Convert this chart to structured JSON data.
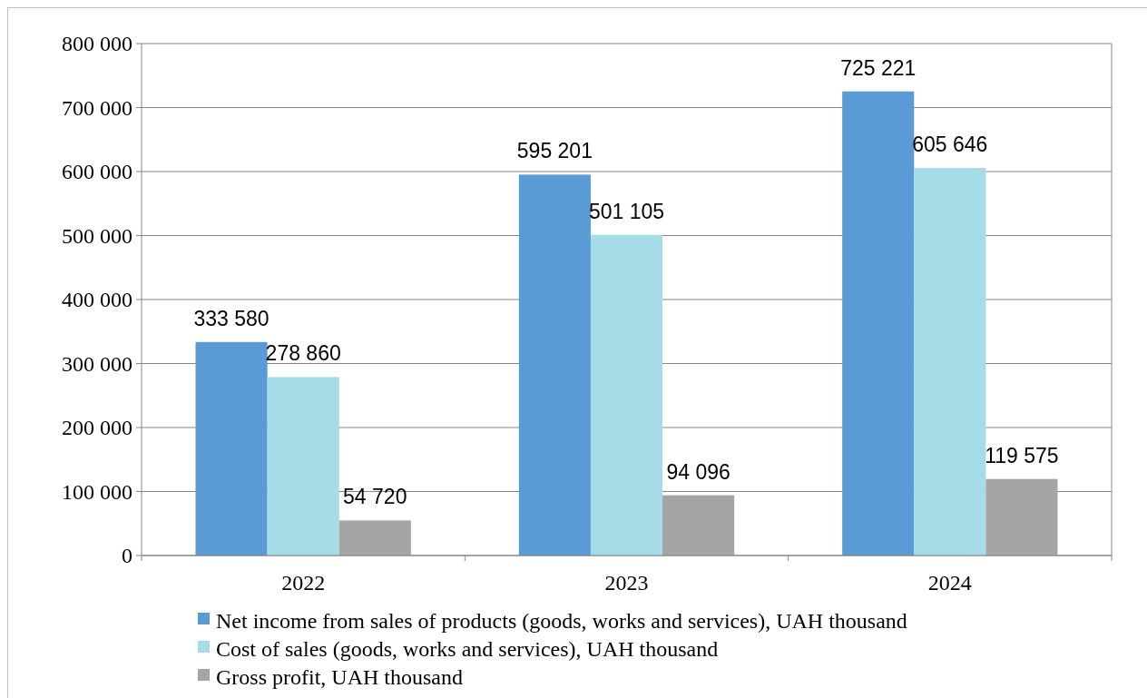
{
  "chart_data": {
    "type": "bar",
    "categories": [
      "2022",
      "2023",
      "2024"
    ],
    "series": [
      {
        "name": "Net income from sales of products (goods, works and services), UAH thousand",
        "color": "#5b9bd5",
        "values": [
          333580,
          595201,
          725221
        ]
      },
      {
        "name": "Cost of sales (goods, works and services), UAH thousand",
        "color": "#a6dce8",
        "values": [
          278860,
          501105,
          605646
        ]
      },
      {
        "name": "Gross profit, UAH thousand",
        "color": "#a5a5a5",
        "values": [
          54720,
          94096,
          119575
        ]
      }
    ],
    "ylim": [
      0,
      800000
    ],
    "yticks": [
      0,
      {
        "value": 100000,
        "label": "100 000"
      },
      {
        "value": 200000,
        "label": "200 000"
      },
      {
        "value": 300000,
        "label": "300 000"
      },
      {
        "value": 400000,
        "label": "400 000"
      },
      {
        "value": 500000,
        "label": "500 000"
      },
      {
        "value": 600000,
        "label": "600 000"
      },
      {
        "value": 700000,
        "label": "700 000"
      },
      {
        "value": 800000,
        "label": "800 000"
      }
    ],
    "grid": "y",
    "legend": "bottom",
    "data_labels": true
  }
}
